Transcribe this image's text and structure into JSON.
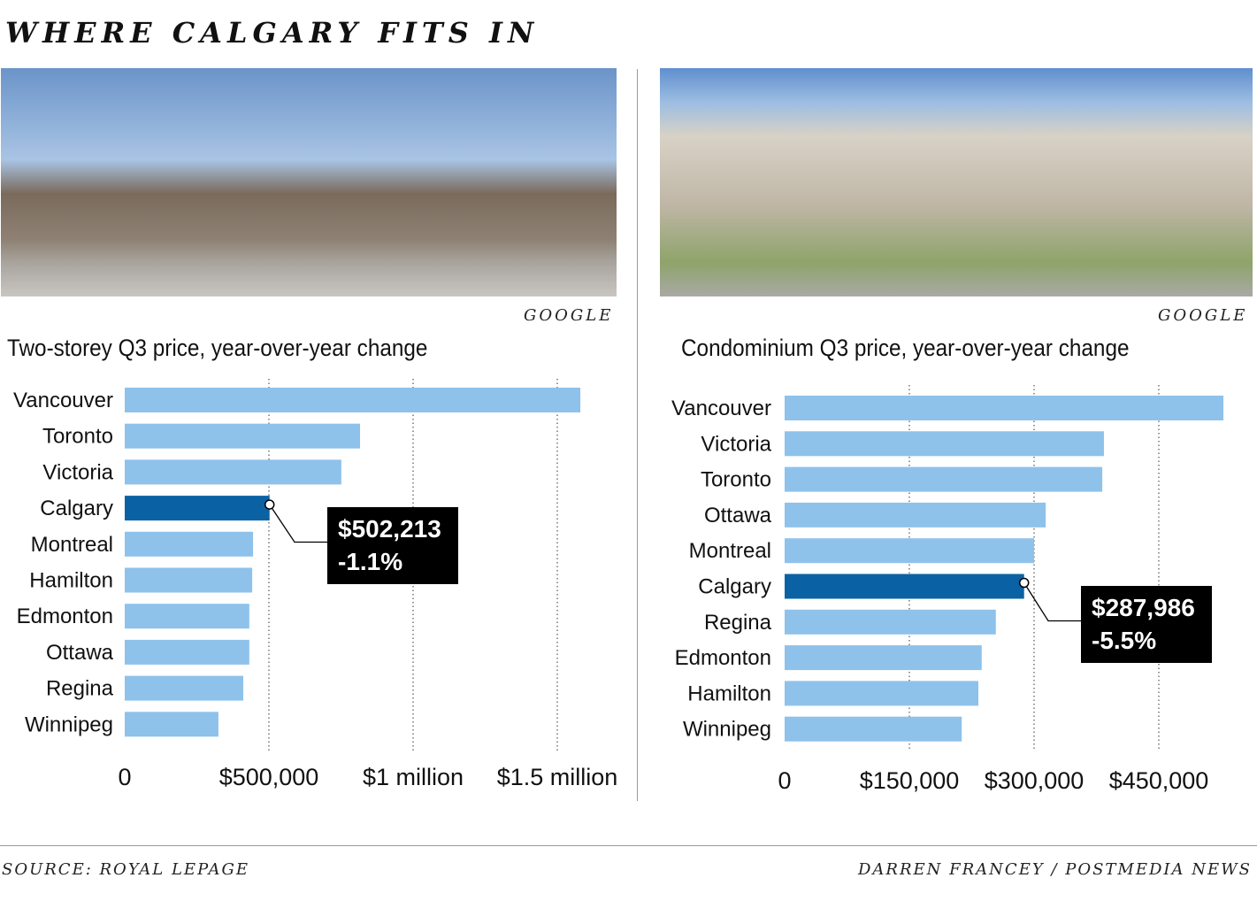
{
  "title": "WHERE CALGARY FITS IN",
  "photo_credit_left": "GOOGLE",
  "photo_credit_right": "GOOGLE",
  "footer": {
    "source": "SOURCE: ROYAL LEPAGE",
    "byline": "DARREN FRANCEY / POSTMEDIA NEWS"
  },
  "colors": {
    "bar": "#8ec2ea",
    "highlight": "#0a62a5",
    "callout_bg": "#000000"
  },
  "chart_data": [
    {
      "type": "bar",
      "orientation": "horizontal",
      "title": "Two-storey Q3 price, year-over-year change",
      "categories": [
        "Vancouver",
        "Toronto",
        "Victoria",
        "Calgary",
        "Montreal",
        "Hamilton",
        "Edmonton",
        "Ottawa",
        "Regina",
        "Winnipeg"
      ],
      "values": [
        1580000,
        816000,
        751000,
        502213,
        445000,
        442000,
        432000,
        432000,
        411000,
        325000
      ],
      "highlight": "Calgary",
      "callout": [
        "$502,213",
        "-1.1%"
      ],
      "xlim": [
        0,
        1650000
      ],
      "ticks": [
        0,
        500000,
        1000000,
        1500000
      ],
      "tick_labels": [
        "0",
        "$500,000",
        "$1 million",
        "$1.5 million"
      ],
      "grid": true
    },
    {
      "type": "bar",
      "orientation": "horizontal",
      "title": "Condominium Q3 price, year-over-year change",
      "categories": [
        "Vancouver",
        "Victoria",
        "Toronto",
        "Ottawa",
        "Montreal",
        "Calgary",
        "Regina",
        "Edmonton",
        "Hamilton",
        "Winnipeg"
      ],
      "values": [
        527700,
        384000,
        382000,
        314000,
        300000,
        287986,
        254000,
        237000,
        233000,
        213000
      ],
      "highlight": "Calgary",
      "callout": [
        "$287,986",
        "-5.5%"
      ],
      "xlim": [
        0,
        540000
      ],
      "ticks": [
        0,
        150000,
        300000,
        450000
      ],
      "tick_labels": [
        "0",
        "$150,000",
        "$300,000",
        "$450,000"
      ],
      "grid": true
    }
  ]
}
